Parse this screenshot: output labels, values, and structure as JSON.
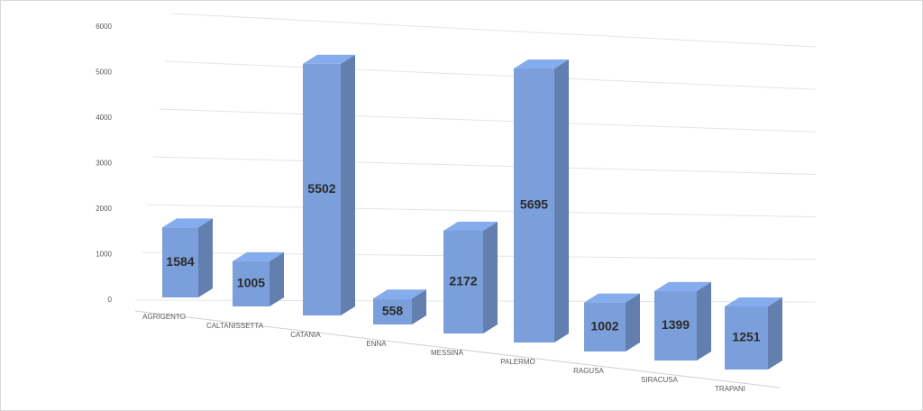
{
  "chart_data": {
    "type": "bar3d",
    "categories": [
      "AGRIGENTO",
      "CALTANISSETTA",
      "CATANIA",
      "ENNA",
      "MESSINA",
      "PALERMO",
      "RAGUSA",
      "SIRACUSA",
      "TRAPANI"
    ],
    "values": [
      1584,
      1005,
      5502,
      558,
      2172,
      5695,
      1002,
      1399,
      1251
    ],
    "color": "#7b9fdb",
    "ylim": [
      0,
      6000
    ],
    "yticks": [
      0,
      1000,
      2000,
      3000,
      4000,
      5000,
      6000
    ],
    "grid": true
  }
}
